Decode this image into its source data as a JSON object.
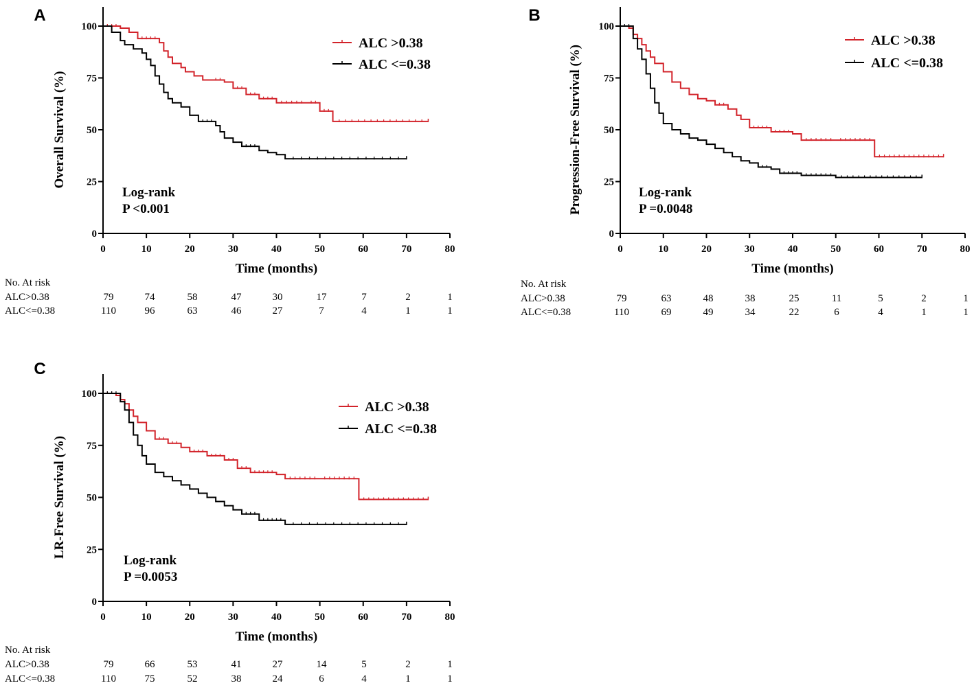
{
  "colors": {
    "high": "#d2232a",
    "low": "#000000"
  },
  "chart_data": [
    {
      "id": "A",
      "type": "line",
      "panel_label": "A",
      "ylabel": "Overall Survival (%)",
      "xlabel": "Time (months)",
      "xlim": [
        0,
        80
      ],
      "ylim": [
        0,
        100
      ],
      "xticks": [
        0,
        10,
        20,
        30,
        40,
        50,
        60,
        70,
        80
      ],
      "yticks": [
        0,
        25,
        50,
        75,
        100
      ],
      "legend": [
        "ALC >0.38",
        "ALC <=0.38"
      ],
      "logrank": {
        "label": "Log-rank",
        "p": "P <0.001"
      },
      "series": [
        {
          "name": "ALC >0.38",
          "x": [
            0,
            4,
            6,
            8,
            13,
            14,
            15,
            16,
            18,
            19,
            21,
            23,
            25,
            28,
            30,
            33,
            36,
            40,
            47,
            50,
            53,
            75
          ],
          "y": [
            100,
            99,
            97,
            94,
            92,
            88,
            85,
            82,
            80,
            78,
            76,
            74,
            74,
            73,
            70,
            67,
            65,
            63,
            63,
            59,
            54,
            54
          ]
        },
        {
          "name": "ALC <=0.38",
          "x": [
            0,
            2,
            4,
            5,
            7,
            9,
            10,
            11,
            12,
            13,
            14,
            15,
            16,
            18,
            20,
            22,
            26,
            27,
            28,
            30,
            32,
            36,
            38,
            40,
            42,
            70
          ],
          "y": [
            100,
            97,
            93,
            91,
            89,
            87,
            84,
            81,
            76,
            72,
            68,
            65,
            63,
            61,
            57,
            54,
            52,
            49,
            46,
            44,
            42,
            40,
            39,
            38,
            36,
            36
          ]
        }
      ],
      "risk_table": {
        "title": "No. At risk",
        "rows": [
          {
            "label": "ALC>0.38",
            "values": [
              "79",
              "74",
              "58",
              "47",
              "30",
              "17",
              "7",
              "2",
              "1"
            ]
          },
          {
            "label": "ALC<=0.38",
            "values": [
              "110",
              "96",
              "63",
              "46",
              "27",
              "7",
              "4",
              "1",
              "1"
            ]
          }
        ]
      }
    },
    {
      "id": "B",
      "type": "line",
      "panel_label": "B",
      "ylabel": "Progression-Free Survival (%)",
      "xlabel": "Time (months)",
      "xlim": [
        0,
        80
      ],
      "ylim": [
        0,
        100
      ],
      "xticks": [
        0,
        10,
        20,
        30,
        40,
        50,
        60,
        70,
        80
      ],
      "yticks": [
        0,
        25,
        50,
        75,
        100
      ],
      "legend": [
        "ALC >0.38",
        "ALC <=0.38"
      ],
      "logrank": {
        "label": "Log-rank",
        "p": "P =0.0048"
      },
      "series": [
        {
          "name": "ALC >0.38",
          "x": [
            0,
            2,
            3,
            4,
            5,
            6,
            7,
            8,
            10,
            12,
            14,
            16,
            18,
            20,
            22,
            25,
            27,
            28,
            30,
            35,
            40,
            42,
            50,
            59,
            75
          ],
          "y": [
            100,
            99,
            96,
            94,
            91,
            88,
            85,
            82,
            78,
            73,
            70,
            67,
            65,
            64,
            62,
            60,
            57,
            55,
            51,
            49,
            48,
            45,
            45,
            37,
            37
          ]
        },
        {
          "name": "ALC <=0.38",
          "x": [
            0,
            3,
            4,
            5,
            6,
            7,
            8,
            9,
            10,
            12,
            14,
            16,
            18,
            20,
            22,
            24,
            26,
            28,
            30,
            32,
            35,
            37,
            42,
            50,
            70
          ],
          "y": [
            100,
            94,
            89,
            84,
            77,
            70,
            63,
            58,
            53,
            50,
            48,
            46,
            45,
            43,
            41,
            39,
            37,
            35,
            34,
            32,
            31,
            29,
            28,
            27,
            27
          ]
        }
      ],
      "risk_table": {
        "title": "No. At risk",
        "rows": [
          {
            "label": "ALC>0.38",
            "values": [
              "79",
              "63",
              "48",
              "38",
              "25",
              "11",
              "5",
              "2",
              "1"
            ]
          },
          {
            "label": "ALC<=0.38",
            "values": [
              "110",
              "69",
              "49",
              "34",
              "22",
              "6",
              "4",
              "1",
              "1"
            ]
          }
        ]
      }
    },
    {
      "id": "C",
      "type": "line",
      "panel_label": "C",
      "ylabel": "LR-Free Survival (%)",
      "xlabel": "Time (months)",
      "xlim": [
        0,
        80
      ],
      "ylim": [
        0,
        100
      ],
      "xticks": [
        0,
        10,
        20,
        30,
        40,
        50,
        60,
        70,
        80
      ],
      "yticks": [
        0,
        25,
        50,
        75,
        100
      ],
      "legend": [
        "ALC >0.38",
        "ALC <=0.38"
      ],
      "logrank": {
        "label": "Log-rank",
        "p": "P =0.0053"
      },
      "series": [
        {
          "name": "ALC >0.38",
          "x": [
            0,
            3,
            4,
            5,
            6,
            7,
            8,
            10,
            12,
            15,
            18,
            20,
            24,
            28,
            31,
            34,
            40,
            42,
            50,
            59,
            75
          ],
          "y": [
            100,
            99,
            97,
            95,
            92,
            89,
            86,
            82,
            78,
            76,
            74,
            72,
            70,
            68,
            64,
            62,
            61,
            59,
            59,
            49,
            49
          ]
        },
        {
          "name": "ALC <=0.38",
          "x": [
            0,
            4,
            5,
            6,
            7,
            8,
            9,
            10,
            12,
            14,
            16,
            18,
            20,
            22,
            24,
            26,
            28,
            30,
            32,
            36,
            42,
            70
          ],
          "y": [
            100,
            96,
            92,
            86,
            80,
            75,
            70,
            66,
            62,
            60,
            58,
            56,
            54,
            52,
            50,
            48,
            46,
            44,
            42,
            39,
            37,
            37
          ]
        }
      ],
      "risk_table": {
        "title": "No. At risk",
        "rows": [
          {
            "label": "ALC>0.38",
            "values": [
              "79",
              "66",
              "53",
              "41",
              "27",
              "14",
              "5",
              "2",
              "1"
            ]
          },
          {
            "label": "ALC<=0.38",
            "values": [
              "110",
              "75",
              "52",
              "38",
              "24",
              "6",
              "4",
              "1",
              "1"
            ]
          }
        ]
      }
    }
  ]
}
